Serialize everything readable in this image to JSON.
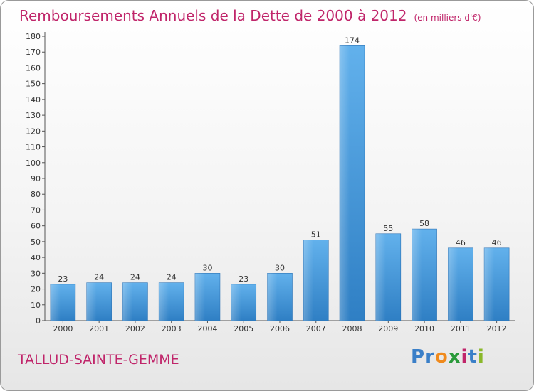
{
  "title": "Remboursements Annuels de la Dette de 2000 à 2012",
  "unit_label": "(en milliers d'€)",
  "commune": "TALLUD-SAINTE-GEMME",
  "logo": {
    "text": "Proxiti",
    "letters": [
      "P",
      "r",
      "o",
      "x",
      "i",
      "t",
      "i"
    ],
    "colors": [
      "#3a7fc8",
      "#3a7fc8",
      "#f08a1c",
      "#2a9a3a",
      "#c0256a",
      "#3a7fc8",
      "#8ab82a"
    ]
  },
  "chart_data": {
    "type": "bar",
    "categories": [
      "2000",
      "2001",
      "2002",
      "2003",
      "2004",
      "2005",
      "2006",
      "2007",
      "2008",
      "2009",
      "2010",
      "2011",
      "2012"
    ],
    "values": [
      23,
      24,
      24,
      24,
      30,
      23,
      30,
      51,
      174,
      55,
      58,
      46,
      46
    ],
    "data_labels": [
      "23",
      "24",
      "24",
      "24",
      "30",
      "23",
      "30",
      "51",
      "174",
      "55",
      "58",
      "46",
      "46"
    ],
    "ylim": [
      0,
      180
    ],
    "yticks": [
      0,
      10,
      20,
      30,
      40,
      50,
      60,
      70,
      80,
      90,
      100,
      110,
      120,
      130,
      140,
      150,
      160,
      170,
      180
    ],
    "grid": false,
    "bar_color": "#4a9ee0"
  }
}
